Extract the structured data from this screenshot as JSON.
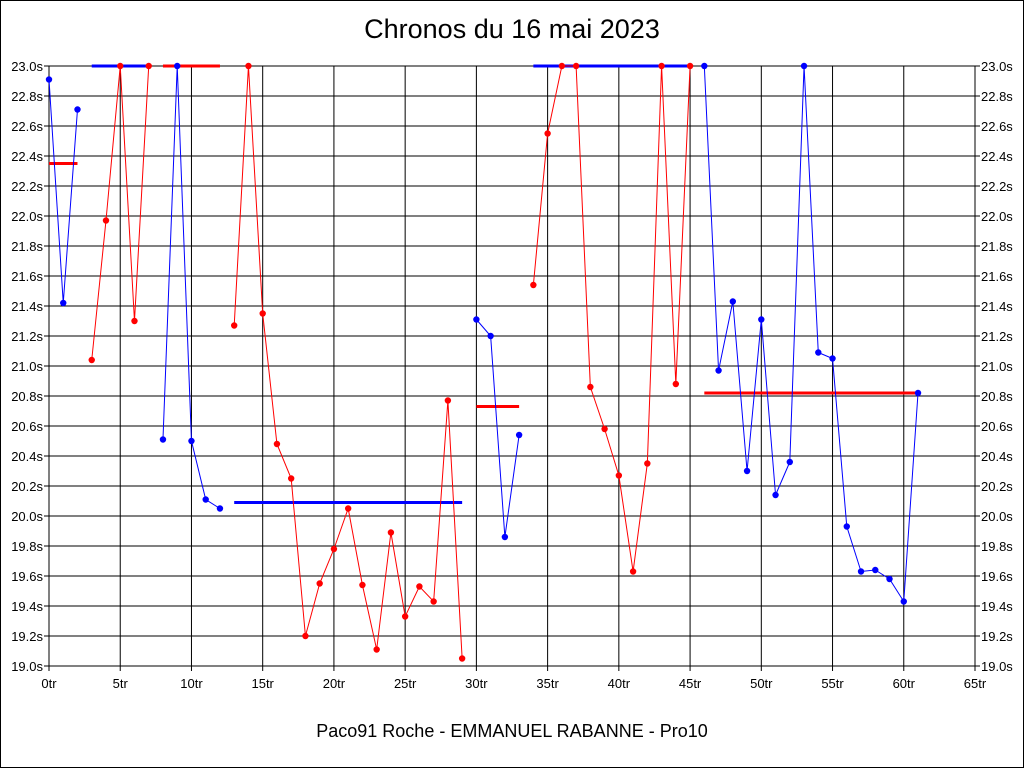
{
  "title": "Chronos du 16 mai 2023",
  "footer": "Paco91 Roche - EMMANUEL RABANNE - Pro10",
  "chart_data": {
    "type": "line",
    "title": "Chronos du 16 mai 2023",
    "xlabel": "",
    "ylabel": "",
    "xlim": [
      0,
      65
    ],
    "ylim": [
      19.0,
      23.0
    ],
    "grid": true,
    "x_ticks": [
      "0tr",
      "5tr",
      "10tr",
      "15tr",
      "20tr",
      "25tr",
      "30tr",
      "35tr",
      "40tr",
      "45tr",
      "50tr",
      "55tr",
      "60tr",
      "65tr"
    ],
    "y_ticks": [
      "19.0s",
      "19.2s",
      "19.4s",
      "19.6s",
      "19.8s",
      "20.0s",
      "20.2s",
      "20.4s",
      "20.6s",
      "20.8s",
      "21.0s",
      "21.2s",
      "21.4s",
      "21.6s",
      "21.8s",
      "22.0s",
      "22.2s",
      "22.4s",
      "22.6s",
      "22.8s",
      "23.0s"
    ],
    "series": [
      {
        "color": "#0000ff",
        "points": [
          [
            0,
            22.91
          ],
          [
            1,
            21.42
          ],
          [
            2,
            22.71
          ]
        ]
      },
      {
        "color": "#ff0000",
        "points": [
          [
            3,
            21.04
          ],
          [
            4,
            21.97
          ],
          [
            5,
            23.0
          ],
          [
            6,
            21.3
          ],
          [
            7,
            23.0
          ]
        ]
      },
      {
        "color": "#0000ff",
        "points": [
          [
            8,
            20.51
          ],
          [
            9,
            23.0
          ],
          [
            10,
            20.5
          ],
          [
            11,
            20.11
          ],
          [
            12,
            20.05
          ]
        ]
      },
      {
        "color": "#ff0000",
        "points": [
          [
            13,
            21.27
          ],
          [
            14,
            23.0
          ],
          [
            15,
            21.35
          ],
          [
            16,
            20.48
          ],
          [
            17,
            20.25
          ],
          [
            18,
            19.2
          ],
          [
            19,
            19.55
          ],
          [
            20,
            19.78
          ],
          [
            21,
            20.05
          ],
          [
            22,
            19.54
          ],
          [
            23,
            19.11
          ],
          [
            24,
            19.89
          ],
          [
            25,
            19.33
          ],
          [
            26,
            19.53
          ],
          [
            27,
            19.43
          ],
          [
            28,
            20.77
          ],
          [
            29,
            19.05
          ]
        ]
      },
      {
        "color": "#0000ff",
        "points": [
          [
            30,
            21.31
          ],
          [
            31,
            21.2
          ],
          [
            32,
            19.86
          ],
          [
            33,
            20.54
          ]
        ]
      },
      {
        "color": "#ff0000",
        "points": [
          [
            34,
            21.54
          ],
          [
            35,
            22.55
          ],
          [
            36,
            23.0
          ],
          [
            37,
            23.0
          ],
          [
            38,
            20.86
          ],
          [
            39,
            20.58
          ],
          [
            40,
            20.27
          ],
          [
            41,
            19.63
          ],
          [
            42,
            20.35
          ],
          [
            43,
            23.0
          ],
          [
            44,
            20.88
          ],
          [
            45,
            23.0
          ]
        ]
      },
      {
        "color": "#0000ff",
        "points": [
          [
            46,
            23.0
          ],
          [
            47,
            20.97
          ],
          [
            48,
            21.43
          ],
          [
            49,
            20.3
          ],
          [
            50,
            21.31
          ],
          [
            51,
            20.14
          ],
          [
            52,
            20.36
          ],
          [
            53,
            23.0
          ],
          [
            54,
            21.09
          ],
          [
            55,
            21.05
          ],
          [
            56,
            19.93
          ],
          [
            57,
            19.63
          ],
          [
            58,
            19.64
          ],
          [
            59,
            19.58
          ],
          [
            60,
            19.43
          ],
          [
            61,
            20.82
          ]
        ]
      }
    ],
    "averages": [
      {
        "color": "#ff0000",
        "x": [
          0,
          2
        ],
        "y": 22.35
      },
      {
        "color": "#0000ff",
        "x": [
          3,
          7
        ],
        "y": 23.0
      },
      {
        "color": "#ff0000",
        "x": [
          8,
          12
        ],
        "y": 23.0
      },
      {
        "color": "#0000ff",
        "x": [
          13,
          29
        ],
        "y": 20.09
      },
      {
        "color": "#ff0000",
        "x": [
          30,
          33
        ],
        "y": 20.73
      },
      {
        "color": "#0000ff",
        "x": [
          34,
          45
        ],
        "y": 23.0
      },
      {
        "color": "#ff0000",
        "x": [
          46,
          61
        ],
        "y": 20.82
      }
    ]
  }
}
